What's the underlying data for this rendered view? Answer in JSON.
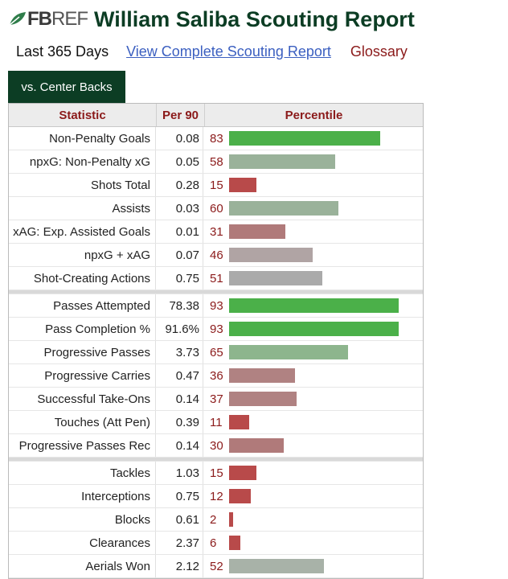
{
  "header": {
    "logo_prefix": "FB",
    "logo_suffix": "REF",
    "title": "William Saliba Scouting Report"
  },
  "subnav": {
    "period": "Last 365 Days",
    "full_report_link": "View Complete Scouting Report",
    "glossary": "Glossary"
  },
  "tab": {
    "label": "vs. Center Backs"
  },
  "table": {
    "headers": {
      "statistic": "Statistic",
      "per90": "Per 90",
      "percentile": "Percentile"
    },
    "colors": {
      "high": "#4caf50",
      "mid_green": "#96b197",
      "neutral": "#b0a8a8",
      "low_mid": "#b07a7a",
      "low": "#b84a4a"
    },
    "groups": [
      [
        {
          "stat": "Non-Penalty Goals",
          "per90": "0.08",
          "pct": "83",
          "color": "#4bb049"
        },
        {
          "stat": "npxG: Non-Penalty xG",
          "per90": "0.05",
          "pct": "58",
          "color": "#9ab29a"
        },
        {
          "stat": "Shots Total",
          "per90": "0.28",
          "pct": "15",
          "color": "#b84a4a"
        },
        {
          "stat": "Assists",
          "per90": "0.03",
          "pct": "60",
          "color": "#9ab29a"
        },
        {
          "stat": "xAG: Exp. Assisted Goals",
          "per90": "0.01",
          "pct": "31",
          "color": "#b07a7a"
        },
        {
          "stat": "npxG + xAG",
          "per90": "0.07",
          "pct": "46",
          "color": "#b0a4a4"
        },
        {
          "stat": "Shot-Creating Actions",
          "per90": "0.75",
          "pct": "51",
          "color": "#aaaaaa"
        }
      ],
      [
        {
          "stat": "Passes Attempted",
          "per90": "78.38",
          "pct": "93",
          "color": "#4bb049"
        },
        {
          "stat": "Pass Completion %",
          "per90": "91.6%",
          "pct": "93",
          "color": "#4bb049"
        },
        {
          "stat": "Progressive Passes",
          "per90": "3.73",
          "pct": "65",
          "color": "#8db58d"
        },
        {
          "stat": "Progressive Carries",
          "per90": "0.47",
          "pct": "36",
          "color": "#b08282"
        },
        {
          "stat": "Successful Take-Ons",
          "per90": "0.14",
          "pct": "37",
          "color": "#b08282"
        },
        {
          "stat": "Touches (Att Pen)",
          "per90": "0.39",
          "pct": "11",
          "color": "#b84a4a"
        },
        {
          "stat": "Progressive Passes Rec",
          "per90": "0.14",
          "pct": "30",
          "color": "#b07a7a"
        }
      ],
      [
        {
          "stat": "Tackles",
          "per90": "1.03",
          "pct": "15",
          "color": "#b84a4a"
        },
        {
          "stat": "Interceptions",
          "per90": "0.75",
          "pct": "12",
          "color": "#b84a4a"
        },
        {
          "stat": "Blocks",
          "per90": "0.61",
          "pct": "2",
          "color": "#b84a4a"
        },
        {
          "stat": "Clearances",
          "per90": "2.37",
          "pct": "6",
          "color": "#b84a4a"
        },
        {
          "stat": "Aerials Won",
          "per90": "2.12",
          "pct": "52",
          "color": "#a8b2a8"
        }
      ]
    ]
  }
}
